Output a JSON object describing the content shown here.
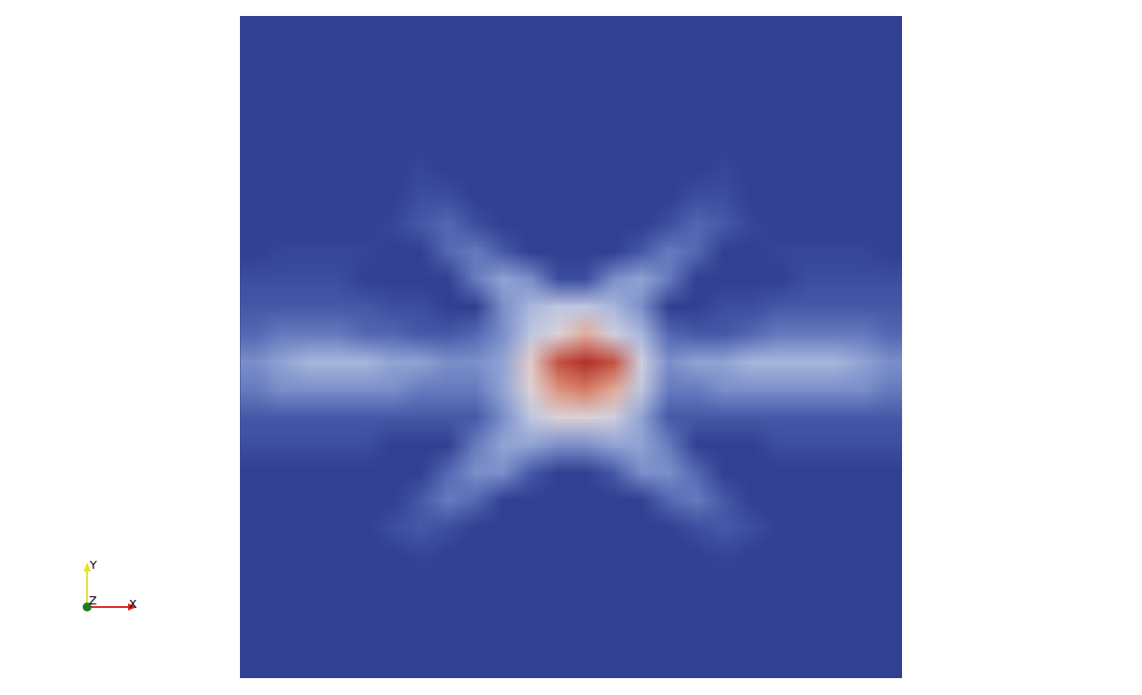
{
  "chart_data": {
    "type": "heatmap",
    "zlim": [
      0,
      1
    ],
    "tick_labels": false,
    "cells": [
      [
        0,
        0,
        0,
        0,
        0,
        0,
        0,
        0,
        0,
        0,
        0,
        0,
        0,
        0,
        0,
        0,
        0,
        0,
        0,
        0,
        0,
        0,
        0,
        0
      ],
      [
        0,
        0,
        0,
        0,
        0,
        0,
        0,
        0,
        0,
        0,
        0,
        0,
        0,
        0,
        0,
        0,
        0,
        0,
        0,
        0,
        0,
        0,
        0,
        0
      ],
      [
        0,
        0,
        0,
        0,
        0,
        0,
        0,
        0,
        0,
        0,
        0,
        0,
        0,
        0,
        0,
        0,
        0,
        0,
        0,
        0,
        0,
        0,
        0,
        0
      ],
      [
        0,
        0,
        0,
        0,
        0,
        0,
        0,
        0,
        0,
        0,
        0,
        0,
        0,
        0,
        0,
        0,
        0,
        0,
        0,
        0,
        0,
        0,
        0,
        0
      ],
      [
        0,
        0,
        0,
        0,
        0,
        0,
        0,
        0,
        0,
        0,
        0,
        0,
        0,
        0,
        0,
        0,
        0,
        0,
        0,
        0,
        0,
        0,
        0,
        0
      ],
      [
        0,
        0,
        0,
        0,
        0,
        0,
        0.05,
        0,
        0,
        0,
        0,
        0,
        0,
        0,
        0,
        0,
        0,
        0.05,
        0,
        0,
        0,
        0,
        0,
        0
      ],
      [
        0,
        0,
        0,
        0,
        0,
        0,
        0.1,
        0.1,
        0,
        0,
        0,
        0,
        0,
        0,
        0,
        0,
        0.1,
        0.1,
        0,
        0,
        0,
        0,
        0,
        0
      ],
      [
        0,
        0,
        0,
        0,
        0,
        0.05,
        0.15,
        0.2,
        0.1,
        0,
        0,
        0,
        0,
        0,
        0,
        0.1,
        0.2,
        0.15,
        0.05,
        0,
        0,
        0,
        0,
        0
      ],
      [
        0,
        0.05,
        0.05,
        0.05,
        0.05,
        0,
        0,
        0.2,
        0.25,
        0.15,
        0,
        0,
        0,
        0,
        0.15,
        0.25,
        0.2,
        0,
        0,
        0.05,
        0.05,
        0.05,
        0.05,
        0
      ],
      [
        0.1,
        0.1,
        0.1,
        0.1,
        0,
        0,
        0,
        0,
        0.25,
        0.35,
        0.3,
        0.1,
        0.1,
        0.3,
        0.35,
        0.25,
        0,
        0,
        0,
        0,
        0.1,
        0.1,
        0.1,
        0.1
      ],
      [
        0.15,
        0.15,
        0.15,
        0.15,
        0.15,
        0.1,
        0.1,
        0,
        0,
        0.3,
        0.4,
        0.45,
        0.45,
        0.4,
        0.3,
        0,
        0,
        0.1,
        0.1,
        0.15,
        0.15,
        0.15,
        0.15,
        0.15
      ],
      [
        0.2,
        0.25,
        0.25,
        0.25,
        0.2,
        0.2,
        0.15,
        0.15,
        0.2,
        0.3,
        0.45,
        0.55,
        0.7,
        0.5,
        0.4,
        0.2,
        0.15,
        0.15,
        0.2,
        0.25,
        0.25,
        0.25,
        0.25,
        0.2
      ],
      [
        0.3,
        0.35,
        0.4,
        0.4,
        0.4,
        0.35,
        0.35,
        0.3,
        0.3,
        0.35,
        0.6,
        0.9,
        1.0,
        0.9,
        0.5,
        0.3,
        0.35,
        0.35,
        0.4,
        0.4,
        0.4,
        0.4,
        0.35,
        0.3
      ],
      [
        0.25,
        0.3,
        0.3,
        0.3,
        0.3,
        0.3,
        0.25,
        0.25,
        0.25,
        0.35,
        0.55,
        0.75,
        0.8,
        0.7,
        0.45,
        0.25,
        0.25,
        0.3,
        0.3,
        0.3,
        0.3,
        0.3,
        0.3,
        0.25
      ],
      [
        0.15,
        0.15,
        0.15,
        0.15,
        0.15,
        0.15,
        0.15,
        0.15,
        0.15,
        0.3,
        0.45,
        0.55,
        0.55,
        0.5,
        0.35,
        0.15,
        0.15,
        0.15,
        0.15,
        0.15,
        0.15,
        0.15,
        0.15,
        0.15
      ],
      [
        0.1,
        0.1,
        0.1,
        0.1,
        0.1,
        0,
        0,
        0,
        0.25,
        0.35,
        0.35,
        0.3,
        0.3,
        0.35,
        0.35,
        0.25,
        0,
        0,
        0,
        0.1,
        0.1,
        0.1,
        0.1,
        0.1
      ],
      [
        0,
        0,
        0,
        0,
        0,
        0,
        0,
        0.2,
        0.3,
        0.3,
        0.15,
        0,
        0,
        0.15,
        0.3,
        0.3,
        0.2,
        0,
        0,
        0,
        0,
        0,
        0,
        0
      ],
      [
        0,
        0,
        0,
        0,
        0,
        0,
        0.15,
        0.25,
        0.2,
        0,
        0,
        0,
        0,
        0,
        0,
        0.2,
        0.25,
        0.15,
        0,
        0,
        0,
        0,
        0,
        0
      ],
      [
        0,
        0,
        0,
        0,
        0,
        0.1,
        0.15,
        0.1,
        0,
        0,
        0,
        0,
        0,
        0,
        0,
        0,
        0.1,
        0.15,
        0.1,
        0,
        0,
        0,
        0,
        0
      ],
      [
        0,
        0,
        0,
        0,
        0,
        0,
        0.05,
        0,
        0,
        0,
        0,
        0,
        0,
        0,
        0,
        0,
        0,
        0.05,
        0,
        0,
        0,
        0,
        0,
        0
      ],
      [
        0,
        0,
        0,
        0,
        0,
        0,
        0,
        0,
        0,
        0,
        0,
        0,
        0,
        0,
        0,
        0,
        0,
        0,
        0,
        0,
        0,
        0,
        0,
        0
      ],
      [
        0,
        0,
        0,
        0,
        0,
        0,
        0,
        0,
        0,
        0,
        0,
        0,
        0,
        0,
        0,
        0,
        0,
        0,
        0,
        0,
        0,
        0,
        0,
        0
      ],
      [
        0,
        0,
        0,
        0,
        0,
        0,
        0,
        0,
        0,
        0,
        0,
        0,
        0,
        0,
        0,
        0,
        0,
        0,
        0,
        0,
        0,
        0,
        0,
        0
      ],
      [
        0,
        0,
        0,
        0,
        0,
        0,
        0,
        0,
        0,
        0,
        0,
        0,
        0,
        0,
        0,
        0,
        0,
        0,
        0,
        0,
        0,
        0,
        0,
        0
      ]
    ]
  },
  "orientation_axes": {
    "x": "X",
    "y": "Y",
    "z": "Z"
  }
}
